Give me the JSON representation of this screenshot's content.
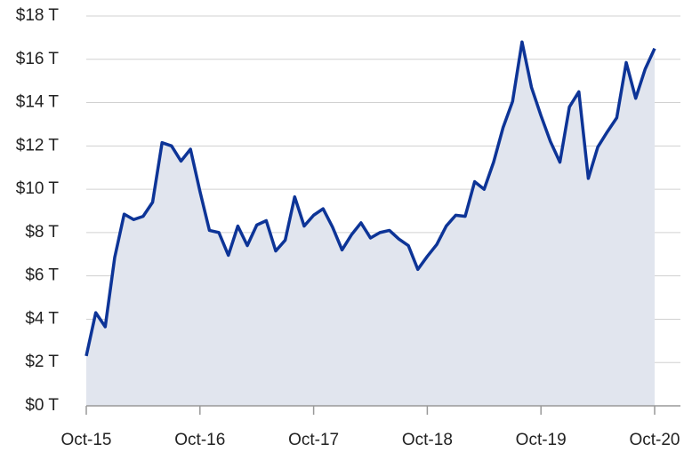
{
  "chart_data": {
    "type": "area",
    "categories": [
      "Oct-15",
      null,
      null,
      null,
      null,
      null,
      null,
      null,
      null,
      null,
      null,
      null,
      "Oct-16",
      null,
      null,
      null,
      null,
      null,
      null,
      null,
      null,
      null,
      null,
      null,
      "Oct-17",
      null,
      null,
      null,
      null,
      null,
      null,
      null,
      null,
      null,
      null,
      null,
      "Oct-18",
      null,
      null,
      null,
      null,
      null,
      null,
      null,
      null,
      null,
      null,
      null,
      "Oct-19",
      null,
      null,
      null,
      null,
      null,
      null,
      null,
      null,
      null,
      null,
      null,
      "Oct-20"
    ],
    "series": [
      {
        "color": "#0d3497",
        "fill": "#e1e5ee",
        "values": [
          2.3,
          4.3,
          3.65,
          6.85,
          8.85,
          8.6,
          8.75,
          9.4,
          12.15,
          12.0,
          11.3,
          11.85,
          9.9,
          8.1,
          8.0,
          6.95,
          8.3,
          7.4,
          8.35,
          8.55,
          7.15,
          7.65,
          9.65,
          8.3,
          8.8,
          9.1,
          8.25,
          7.2,
          7.9,
          8.45,
          7.75,
          8.0,
          8.1,
          7.7,
          7.4,
          6.3,
          6.9,
          7.45,
          8.3,
          8.8,
          8.75,
          10.35,
          10.0,
          11.25,
          12.85,
          14.05,
          16.8,
          14.7,
          13.4,
          12.2,
          11.25,
          13.8,
          14.5,
          10.5,
          11.95,
          12.65,
          13.3,
          15.85,
          14.2,
          15.55,
          16.5
        ]
      }
    ],
    "ylim": [
      0,
      18
    ],
    "yticks": [
      {
        "value": 0,
        "label": "$0 T"
      },
      {
        "value": 2,
        "label": "$2 T"
      },
      {
        "value": 4,
        "label": "$4 T"
      },
      {
        "value": 6,
        "label": "$6 T"
      },
      {
        "value": 8,
        "label": "$8 T"
      },
      {
        "value": 10,
        "label": "$10 T"
      },
      {
        "value": 12,
        "label": "$12 T"
      },
      {
        "value": 14,
        "label": "$14 T"
      },
      {
        "value": 16,
        "label": "$16 T"
      },
      {
        "value": 18,
        "label": "$18 T"
      }
    ],
    "grid": true
  }
}
